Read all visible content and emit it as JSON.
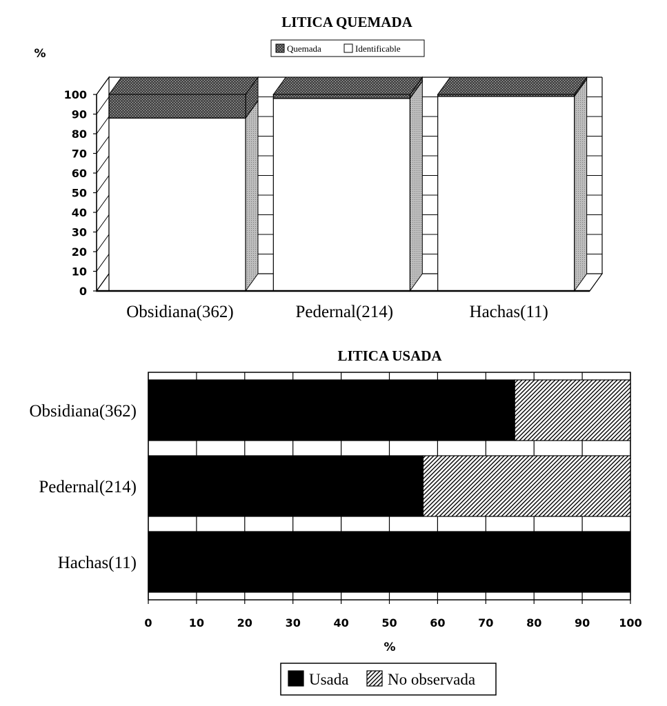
{
  "chart_data": [
    {
      "type": "bar",
      "stacked": true,
      "three_d": true,
      "orientation": "vertical",
      "title": "LITICA QUEMADA",
      "ylabel": "%",
      "ylim": [
        0,
        100
      ],
      "yticks": [
        "0",
        "10",
        "20",
        "30",
        "40",
        "50",
        "60",
        "70",
        "80",
        "90",
        "100"
      ],
      "categories": [
        "Obsidiana(362)",
        "Pedernal(214)",
        "Hachas(11)"
      ],
      "series": [
        {
          "name": "Identificable",
          "values": [
            88,
            98,
            99
          ],
          "color": "#ffffff"
        },
        {
          "name": "Quemada",
          "values": [
            12,
            2,
            1
          ],
          "color": "#555555"
        }
      ],
      "legend": {
        "position": "top",
        "items": [
          "Quemada",
          "Identificable"
        ]
      }
    },
    {
      "type": "bar",
      "stacked": true,
      "orientation": "horizontal",
      "title": "LITICA USADA",
      "xlabel": "%",
      "xlim": [
        0,
        100
      ],
      "xticks": [
        "0",
        "10",
        "20",
        "30",
        "40",
        "50",
        "60",
        "70",
        "80",
        "90",
        "100"
      ],
      "categories": [
        "Obsidiana(362)",
        "Pedernal(214)",
        "Hachas(11)"
      ],
      "series": [
        {
          "name": "Usada",
          "values": [
            76,
            57,
            100
          ],
          "color": "#000000"
        },
        {
          "name": "No observada",
          "values": [
            24,
            43,
            0
          ],
          "color": "#ffffff"
        }
      ],
      "legend": {
        "position": "bottom",
        "items": [
          "Usada",
          "No observada"
        ]
      }
    }
  ]
}
